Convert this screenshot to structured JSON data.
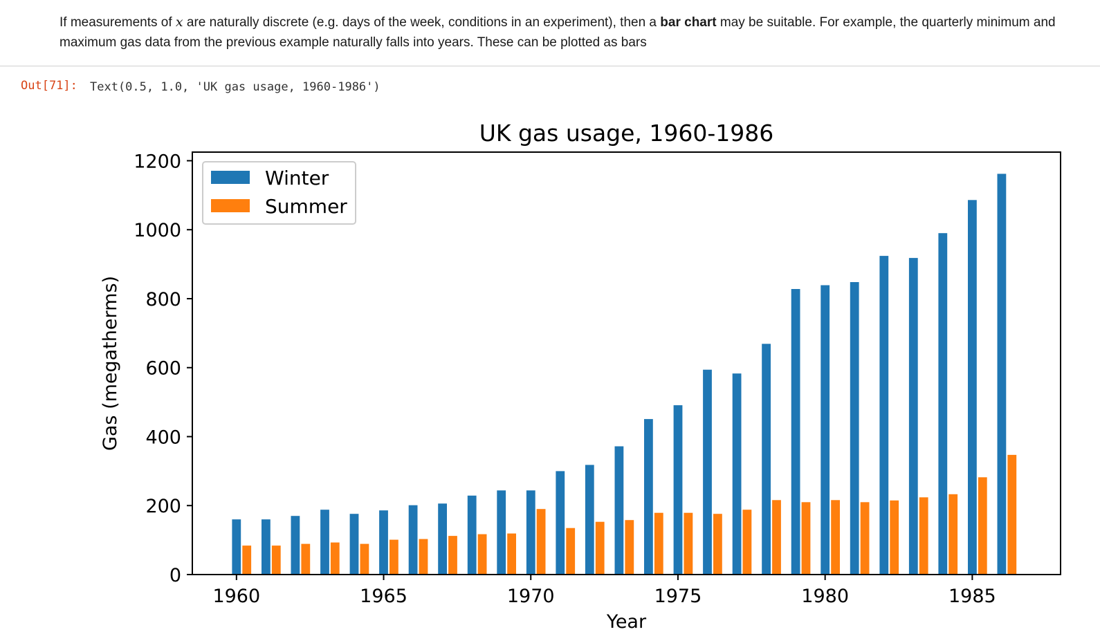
{
  "markdown": {
    "text_before_math": "If measurements of ",
    "math_symbol": "x",
    "text_after_math": " are naturally discrete (e.g. days of the week, conditions in an experiment), then a ",
    "bold_text": "bar chart",
    "text_end": " may be suitable. For example, the quarterly minimum and maximum gas data from the previous example naturally falls into years. These can be plotted as bars"
  },
  "output": {
    "prompt": "Out[71]:",
    "text": "Text(0.5, 1.0, 'UK gas usage, 1960-1986')"
  },
  "colors": {
    "winter": "#1f77b4",
    "summer": "#ff7f0e"
  },
  "chart_data": {
    "type": "bar",
    "title": "UK gas usage, 1960-1986",
    "xlabel": "Year",
    "ylabel": "Gas (megatherms)",
    "x": [
      1960,
      1961,
      1962,
      1963,
      1964,
      1965,
      1966,
      1967,
      1968,
      1969,
      1970,
      1971,
      1972,
      1973,
      1974,
      1975,
      1976,
      1977,
      1978,
      1979,
      1980,
      1981,
      1982,
      1983,
      1984,
      1985,
      1986
    ],
    "series": [
      {
        "name": "Winter",
        "values": [
          160,
          160,
          170,
          188,
          176,
          186,
          201,
          206,
          229,
          244,
          244,
          300,
          318,
          372,
          451,
          491,
          594,
          583,
          669,
          828,
          839,
          848,
          924,
          918,
          990,
          1086,
          1162
        ]
      },
      {
        "name": "Summer",
        "values": [
          84,
          84,
          89,
          93,
          89,
          101,
          103,
          112,
          117,
          119,
          190,
          135,
          153,
          158,
          179,
          179,
          176,
          188,
          216,
          210,
          216,
          210,
          215,
          224,
          233,
          282,
          347
        ]
      }
    ],
    "xticks": [
      1960,
      1965,
      1970,
      1975,
      1980,
      1985
    ],
    "yticks": [
      0,
      200,
      400,
      600,
      800,
      1000,
      1200
    ],
    "xlim": [
      1958.5,
      1988
    ],
    "ylim": [
      0,
      1225
    ],
    "legend": "upper-left"
  }
}
